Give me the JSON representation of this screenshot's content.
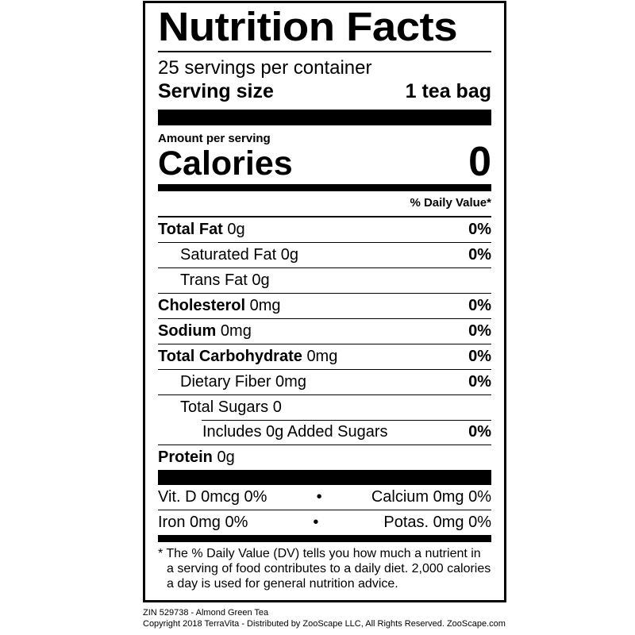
{
  "label": {
    "title": "Nutrition Facts",
    "servings_per_container": "25 servings per container",
    "serving_size_label": "Serving size",
    "serving_size_value": "1 tea bag",
    "amount_per_serving": "Amount per serving",
    "calories_label": "Calories",
    "calories_value": "0",
    "daily_value_header": "% Daily Value*",
    "nutrients": [
      {
        "name": "Total Fat",
        "amount": "0g",
        "dv": "0%"
      },
      {
        "name": "Saturated Fat",
        "amount": "0g",
        "dv": "0%"
      },
      {
        "name": "Trans Fat",
        "amount": "0g",
        "dv": ""
      },
      {
        "name": "Cholesterol",
        "amount": "0mg",
        "dv": "0%"
      },
      {
        "name": "Sodium",
        "amount": "0mg",
        "dv": "0%"
      },
      {
        "name": "Total Carbohydrate",
        "amount": "0mg",
        "dv": "0%"
      },
      {
        "name": "Dietary Fiber",
        "amount": "0mg",
        "dv": "0%"
      },
      {
        "name": "Total Sugars",
        "amount": "0",
        "dv": ""
      },
      {
        "name": "Includes 0g Added Sugars",
        "amount": "",
        "dv": "0%"
      },
      {
        "name": "Protein",
        "amount": "0g",
        "dv": ""
      }
    ],
    "vitamins": [
      {
        "left": "Vit. D 0mcg 0%",
        "right": "Calcium 0mg 0%"
      },
      {
        "left": "Iron 0mg 0%",
        "right": "Potas. 0mg 0%"
      }
    ],
    "bullet": "•",
    "footnote": "* The % Daily Value (DV) tells you how much a nutrient in a serving of food contributes to a daily diet. 2,000 calories a day is used for general nutrition advice."
  },
  "meta": {
    "product": "ZIN 529738 - Almond Green Tea",
    "copyright": "Copyright 2018 TerraVita - Distributed by ZooScape LLC, All Rights Reserved. ZooScape.com"
  }
}
